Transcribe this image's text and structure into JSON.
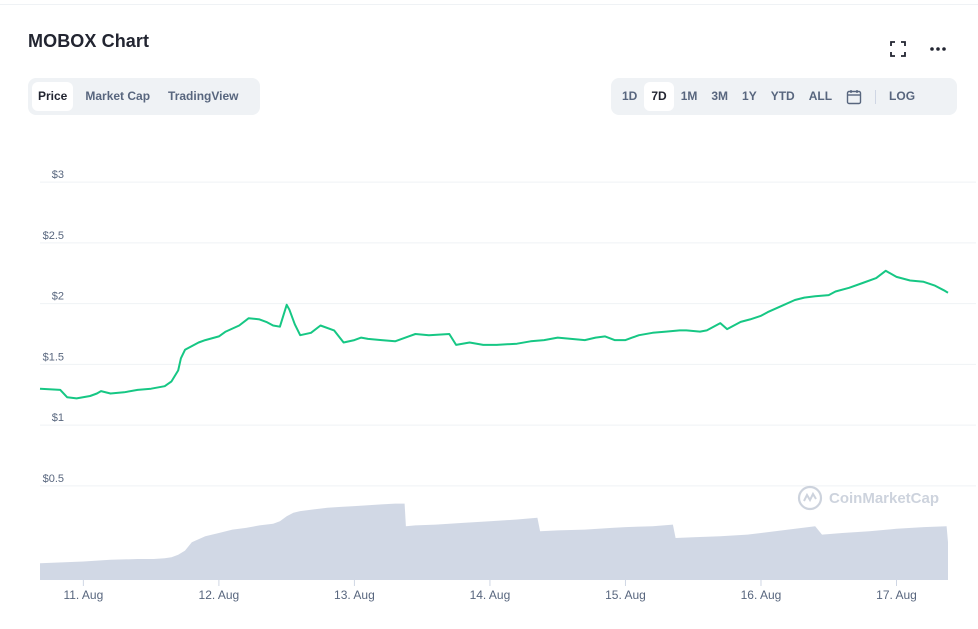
{
  "header": {
    "title": "MOBOX Chart",
    "fullscreen_icon": "fullscreen-icon",
    "more_icon": "more-dots-icon"
  },
  "tabs": [
    {
      "label": "Price",
      "active": true
    },
    {
      "label": "Market Cap",
      "active": false
    },
    {
      "label": "TradingView",
      "active": false
    }
  ],
  "ranges": [
    {
      "label": "1D",
      "active": false
    },
    {
      "label": "7D",
      "active": true
    },
    {
      "label": "1M",
      "active": false
    },
    {
      "label": "3M",
      "active": false
    },
    {
      "label": "1Y",
      "active": false
    },
    {
      "label": "YTD",
      "active": false
    },
    {
      "label": "ALL",
      "active": false
    }
  ],
  "calendar_icon": "calendar-icon",
  "log_label": "LOG",
  "watermark": {
    "text": "CoinMarketCap",
    "icon": "coinmarketcap-logo-icon"
  },
  "colors": {
    "line": "#16c784",
    "volume": "#cfd6e4",
    "grid": "#eff2f5",
    "tick": "#58667e"
  },
  "chart_data": {
    "type": "line",
    "ylim": [
      0.4,
      3.1
    ],
    "yticks": [
      "$3",
      "$2.5",
      "$2",
      "$1.5",
      "$1",
      "$0.5"
    ],
    "ytick_values": [
      3,
      2.5,
      2,
      1.5,
      1,
      0.5
    ],
    "xlim": [
      10.68,
      17.38
    ],
    "xticks": [
      "11. Aug",
      "12. Aug",
      "13. Aug",
      "14. Aug",
      "15. Aug",
      "16. Aug",
      "17. Aug"
    ],
    "xtick_values": [
      11,
      12,
      13,
      14,
      15,
      16,
      17
    ],
    "grid": true,
    "series": [
      {
        "x": [
          10.68,
          10.83,
          10.88,
          10.95,
          11.05,
          11.1,
          11.13,
          11.2,
          11.3,
          11.4,
          11.5,
          11.6,
          11.65,
          11.7,
          11.72,
          11.75,
          11.8,
          11.85,
          11.9,
          12.0,
          12.05,
          12.15,
          12.22,
          12.3,
          12.35,
          12.4,
          12.45,
          12.5,
          12.52,
          12.56,
          12.6,
          12.68,
          12.75,
          12.85,
          12.92,
          13.0,
          13.05,
          13.1,
          13.2,
          13.3,
          13.4,
          13.45,
          13.55,
          13.7,
          13.75,
          13.85,
          13.95,
          14.05,
          14.2,
          14.3,
          14.4,
          14.5,
          14.6,
          14.7,
          14.78,
          14.85,
          14.92,
          15.0,
          15.05,
          15.1,
          15.2,
          15.3,
          15.4,
          15.45,
          15.55,
          15.6,
          15.7,
          15.75,
          15.85,
          15.92,
          16.0,
          16.05,
          16.15,
          16.25,
          16.32,
          16.4,
          16.5,
          16.55,
          16.65,
          16.75,
          16.85,
          16.92,
          17.0,
          17.1,
          17.2,
          17.28,
          17.35,
          17.38
        ],
        "y": [
          1.3,
          1.29,
          1.23,
          1.22,
          1.24,
          1.26,
          1.28,
          1.26,
          1.27,
          1.29,
          1.3,
          1.32,
          1.36,
          1.45,
          1.55,
          1.62,
          1.65,
          1.68,
          1.7,
          1.73,
          1.77,
          1.82,
          1.88,
          1.87,
          1.85,
          1.82,
          1.81,
          1.99,
          1.95,
          1.83,
          1.74,
          1.76,
          1.82,
          1.78,
          1.68,
          1.7,
          1.72,
          1.71,
          1.7,
          1.69,
          1.73,
          1.75,
          1.74,
          1.75,
          1.66,
          1.68,
          1.66,
          1.66,
          1.67,
          1.69,
          1.7,
          1.72,
          1.71,
          1.7,
          1.72,
          1.73,
          1.7,
          1.7,
          1.72,
          1.74,
          1.76,
          1.77,
          1.78,
          1.78,
          1.77,
          1.78,
          1.84,
          1.79,
          1.85,
          1.87,
          1.9,
          1.93,
          1.98,
          2.03,
          2.05,
          2.06,
          2.07,
          2.1,
          2.13,
          2.17,
          2.21,
          2.27,
          2.22,
          2.19,
          2.18,
          2.15,
          2.11,
          2.09
        ]
      }
    ],
    "volume": {
      "x": [
        10.68,
        11.0,
        11.2,
        11.4,
        11.5,
        11.52,
        11.6,
        11.65,
        11.7,
        11.75,
        11.8,
        11.9,
        12.0,
        12.1,
        12.2,
        12.3,
        12.4,
        12.45,
        12.5,
        12.55,
        12.6,
        12.7,
        12.8,
        12.9,
        13.0,
        13.1,
        13.2,
        13.3,
        13.37,
        13.38,
        13.45,
        13.6,
        13.8,
        14.0,
        14.2,
        14.35,
        14.37,
        14.5,
        14.7,
        14.9,
        15.0,
        15.2,
        15.35,
        15.37,
        15.5,
        15.7,
        15.9,
        16.0,
        16.2,
        16.4,
        16.45,
        16.6,
        16.8,
        17.0,
        17.2,
        17.37,
        17.38
      ],
      "share": [
        0.2,
        0.22,
        0.24,
        0.25,
        0.25,
        0.25,
        0.26,
        0.27,
        0.3,
        0.35,
        0.45,
        0.52,
        0.56,
        0.6,
        0.62,
        0.65,
        0.67,
        0.7,
        0.76,
        0.8,
        0.82,
        0.84,
        0.86,
        0.87,
        0.88,
        0.89,
        0.9,
        0.91,
        0.91,
        0.64,
        0.65,
        0.66,
        0.68,
        0.7,
        0.72,
        0.74,
        0.58,
        0.59,
        0.6,
        0.62,
        0.63,
        0.64,
        0.66,
        0.5,
        0.51,
        0.52,
        0.54,
        0.56,
        0.6,
        0.64,
        0.54,
        0.56,
        0.58,
        0.61,
        0.63,
        0.64,
        0.45
      ]
    }
  }
}
